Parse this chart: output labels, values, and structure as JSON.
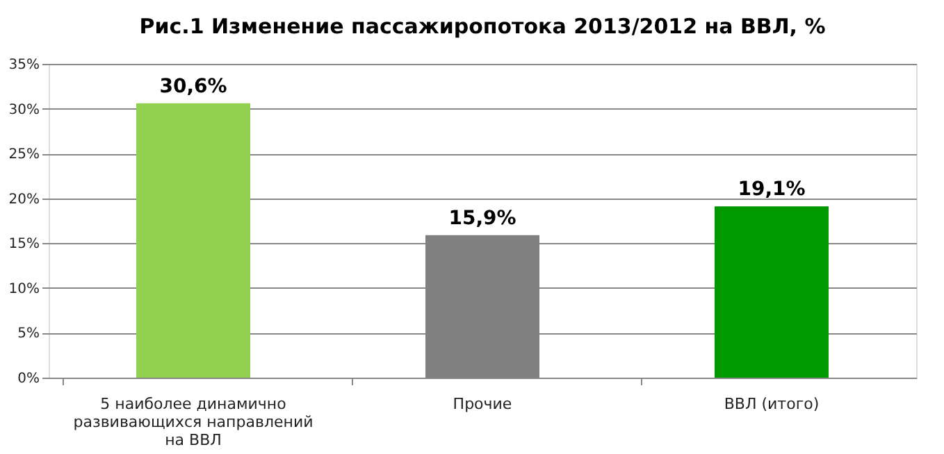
{
  "chart_data": {
    "type": "bar",
    "title": "Рис.1 Изменение пассажиропотока  2013/2012 на ВВЛ, %",
    "categories": [
      "5 наиболее динамично развивающихся направлений на ВВЛ",
      "Прочие",
      "ВВЛ (итого)"
    ],
    "values": [
      30.6,
      15.9,
      19.1
    ],
    "colors": [
      "#92d050",
      "#808080",
      "#009900"
    ],
    "value_labels": [
      "30,6%",
      "15,9%",
      "19,1%"
    ],
    "ylim": [
      0,
      35
    ],
    "yticks": [
      {
        "value": 0,
        "label": "0%"
      },
      {
        "value": 5,
        "label": "5%"
      },
      {
        "value": 10,
        "label": "10%"
      },
      {
        "value": 15,
        "label": "15%"
      },
      {
        "value": 20,
        "label": "20%"
      },
      {
        "value": 25,
        "label": "25%"
      },
      {
        "value": 30,
        "label": "30%"
      },
      {
        "value": 35,
        "label": "35%"
      }
    ],
    "grid": "y"
  }
}
